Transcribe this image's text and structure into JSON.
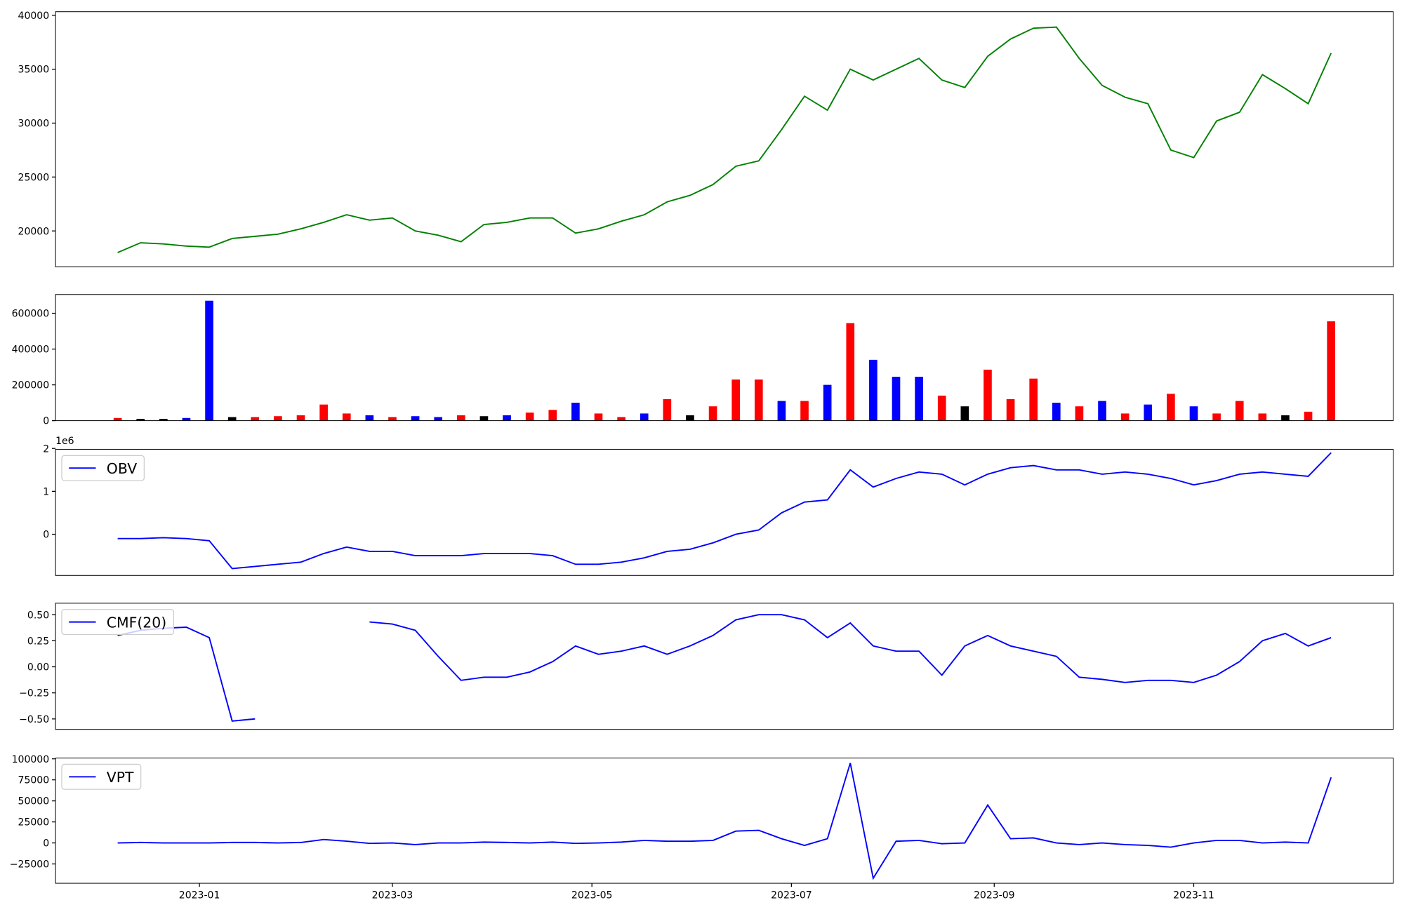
{
  "chart_data": [
    {
      "type": "line",
      "xlim": [
        -44,
        365
      ],
      "ylim": [
        16680,
        40330
      ],
      "yticks": [
        20000,
        25000,
        30000,
        35000,
        40000
      ],
      "x": [
        -25,
        -18,
        -11,
        -4,
        3,
        10,
        17,
        24,
        31,
        38,
        45,
        52,
        59,
        66,
        73,
        80,
        87,
        94,
        101,
        108,
        115,
        122,
        129,
        136,
        143,
        150,
        157,
        164,
        171,
        178,
        185,
        192,
        199,
        206,
        213,
        220,
        227,
        234,
        241,
        248,
        255,
        262,
        269,
        276,
        283,
        290,
        297,
        304,
        311,
        318,
        325,
        332,
        339,
        346
      ],
      "series": [
        {
          "color": "#008000",
          "values": [
            18000,
            18900,
            18800,
            18600,
            18500,
            19300,
            19500,
            19700,
            20200,
            20800,
            21500,
            21000,
            21200,
            20000,
            19600,
            19000,
            20600,
            20800,
            21200,
            21200,
            19800,
            20200,
            20900,
            21500,
            22700,
            23300,
            24300,
            26000,
            26500,
            29400,
            32500,
            31200,
            35000,
            34000,
            35000,
            36000,
            34000,
            33300,
            36200,
            37800,
            38800,
            38900,
            36000,
            33500,
            32400,
            31800,
            27500,
            26800,
            30200,
            31000,
            34500,
            33200,
            31800,
            36500
          ]
        }
      ]
    },
    {
      "type": "bar",
      "xlim": [
        -44,
        365
      ],
      "ylim": [
        0,
        705000
      ],
      "yticks": [
        0,
        200000,
        400000,
        600000
      ],
      "x": [
        -25,
        -18,
        -11,
        -4,
        3,
        10,
        17,
        24,
        31,
        38,
        45,
        52,
        59,
        66,
        73,
        80,
        87,
        94,
        101,
        108,
        115,
        122,
        129,
        136,
        143,
        150,
        157,
        164,
        171,
        178,
        185,
        192,
        199,
        206,
        213,
        220,
        227,
        234,
        241,
        248,
        255,
        262,
        269,
        276,
        283,
        290,
        297,
        304,
        311,
        318,
        325,
        332,
        339,
        346
      ],
      "series": [
        {
          "values": [
            15000,
            10000,
            10000,
            15000,
            670000,
            20000,
            20000,
            25000,
            30000,
            90000,
            40000,
            30000,
            20000,
            25000,
            20000,
            30000,
            25000,
            30000,
            45000,
            60000,
            100000,
            40000,
            20000,
            40000,
            120000,
            30000,
            80000,
            230000,
            230000,
            110000,
            110000,
            200000,
            545000,
            340000,
            245000,
            245000,
            140000,
            80000,
            285000,
            120000,
            235000,
            100000,
            80000,
            110000,
            40000,
            90000,
            150000,
            80000,
            40000,
            110000,
            40000,
            30000,
            50000,
            555000
          ],
          "colors": [
            "red",
            "black",
            "black",
            "blue",
            "blue",
            "black",
            "red",
            "red",
            "red",
            "red",
            "red",
            "blue",
            "red",
            "blue",
            "blue",
            "red",
            "black",
            "blue",
            "red",
            "red",
            "blue",
            "red",
            "red",
            "blue",
            "red",
            "black",
            "red",
            "red",
            "red",
            "blue",
            "red",
            "blue",
            "red",
            "blue",
            "blue",
            "blue",
            "red",
            "black",
            "red",
            "red",
            "red",
            "blue",
            "red",
            "blue",
            "red",
            "blue",
            "red",
            "blue",
            "red",
            "red",
            "red",
            "black",
            "red",
            "red"
          ]
        }
      ]
    },
    {
      "type": "line",
      "xlim": [
        -44,
        365
      ],
      "ylim": [
        -960000,
        1980000
      ],
      "y_offset_label": "1e6",
      "legend": "upper left",
      "yticks": [
        {
          "value": 0,
          "label": "0"
        },
        {
          "value": 1000000,
          "label": "1"
        },
        {
          "value": 2000000,
          "label": "2"
        }
      ],
      "x": [
        -25,
        -18,
        -11,
        -4,
        3,
        10,
        17,
        24,
        31,
        38,
        45,
        52,
        59,
        66,
        73,
        80,
        87,
        94,
        101,
        108,
        115,
        122,
        129,
        136,
        143,
        150,
        157,
        164,
        171,
        178,
        185,
        192,
        199,
        206,
        213,
        220,
        227,
        234,
        241,
        248,
        255,
        262,
        269,
        276,
        283,
        290,
        297,
        304,
        311,
        318,
        325,
        332,
        339,
        346
      ],
      "series": [
        {
          "name": "OBV",
          "color": "#0000ff",
          "values": [
            -100000,
            -100000,
            -80000,
            -100000,
            -150000,
            -800000,
            -750000,
            -700000,
            -650000,
            -450000,
            -300000,
            -400000,
            -400000,
            -500000,
            -500000,
            -500000,
            -450000,
            -450000,
            -450000,
            -500000,
            -700000,
            -700000,
            -650000,
            -550000,
            -400000,
            -350000,
            -200000,
            0,
            100000,
            500000,
            750000,
            800000,
            1500000,
            1100000,
            1300000,
            1450000,
            1400000,
            1150000,
            1400000,
            1550000,
            1600000,
            1500000,
            1500000,
            1400000,
            1450000,
            1400000,
            1300000,
            1150000,
            1250000,
            1400000,
            1450000,
            1400000,
            1350000,
            1900000
          ]
        }
      ]
    },
    {
      "type": "line",
      "xlim": [
        -44,
        365
      ],
      "ylim": [
        -0.6,
        0.61
      ],
      "legend": "upper left",
      "yticks": [
        {
          "value": -0.5,
          "label": "−0.50"
        },
        {
          "value": -0.25,
          "label": "−0.25"
        },
        {
          "value": 0,
          "label": "0.00"
        },
        {
          "value": 0.25,
          "label": "0.25"
        },
        {
          "value": 0.5,
          "label": "0.50"
        }
      ],
      "x": [
        -25,
        -18,
        -11,
        -4,
        3,
        10,
        17,
        24,
        31,
        38,
        45,
        52,
        59,
        66,
        73,
        80,
        87,
        94,
        101,
        108,
        115,
        122,
        129,
        136,
        143,
        150,
        157,
        164,
        171,
        178,
        185,
        192,
        199,
        206,
        213,
        220,
        227,
        234,
        241,
        248,
        255,
        262,
        269,
        276,
        283,
        290,
        297,
        304,
        311,
        318,
        325,
        332,
        339,
        346
      ],
      "series": [
        {
          "name": "CMF(20)",
          "color": "#0000ff",
          "values": [
            0.3,
            0.35,
            0.37,
            0.38,
            0.28,
            -0.52,
            -0.5,
            null,
            null,
            null,
            null,
            0.43,
            0.41,
            0.35,
            0.1,
            -0.13,
            -0.1,
            -0.1,
            -0.05,
            0.05,
            0.2,
            0.12,
            0.15,
            0.2,
            0.12,
            0.2,
            0.3,
            0.45,
            0.5,
            0.5,
            0.45,
            0.28,
            0.42,
            0.2,
            0.15,
            0.15,
            -0.08,
            0.2,
            0.3,
            0.2,
            0.15,
            0.1,
            -0.1,
            -0.12,
            -0.15,
            -0.13,
            -0.13,
            -0.15,
            -0.08,
            0.05,
            0.25,
            0.32,
            0.2,
            0.28
          ]
        }
      ]
    },
    {
      "type": "line",
      "xlim": [
        -44,
        365
      ],
      "ylim": [
        -48000,
        101000
      ],
      "legend": "upper left",
      "yticks": [
        {
          "value": -25000,
          "label": "−25000"
        },
        0,
        25000,
        50000,
        75000,
        100000
      ],
      "xticks": [
        {
          "value": 0,
          "label": "2023-01"
        },
        {
          "value": 59,
          "label": "2023-03"
        },
        {
          "value": 120,
          "label": "2023-05"
        },
        {
          "value": 181,
          "label": "2023-07"
        },
        {
          "value": 243,
          "label": "2023-09"
        },
        {
          "value": 304,
          "label": "2023-11"
        }
      ],
      "x": [
        -25,
        -18,
        -11,
        -4,
        3,
        10,
        17,
        24,
        31,
        38,
        45,
        52,
        59,
        66,
        73,
        80,
        87,
        94,
        101,
        108,
        115,
        122,
        129,
        136,
        143,
        150,
        157,
        164,
        171,
        178,
        185,
        192,
        199,
        206,
        213,
        220,
        227,
        234,
        241,
        248,
        255,
        262,
        269,
        276,
        283,
        290,
        297,
        304,
        311,
        318,
        325,
        332,
        339,
        346
      ],
      "series": [
        {
          "name": "VPT",
          "color": "#0000ff",
          "values": [
            0,
            500,
            0,
            0,
            0,
            500,
            500,
            0,
            500,
            4000,
            2000,
            -500,
            0,
            -2000,
            0,
            0,
            1000,
            500,
            0,
            1000,
            -500,
            0,
            1000,
            3000,
            2000,
            2000,
            3000,
            14000,
            15000,
            5000,
            -3000,
            5000,
            95000,
            -42000,
            2000,
            3000,
            -1000,
            0,
            45000,
            5000,
            6000,
            0,
            -2000,
            0,
            -2000,
            -3000,
            -5000,
            0,
            3000,
            3000,
            0,
            1000,
            0,
            78000
          ]
        }
      ]
    }
  ]
}
